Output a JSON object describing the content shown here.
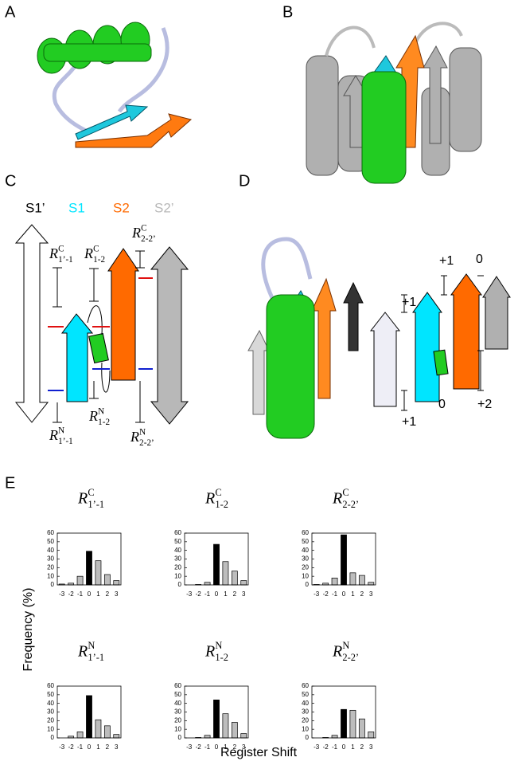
{
  "figure": {
    "panel_labels": [
      "A",
      "B",
      "C",
      "D",
      "E"
    ],
    "y_label": "Frequency (%)",
    "x_label": "Register Shift",
    "panel_c": {
      "strands": [
        {
          "name": "S1’",
          "color": "#000000"
        },
        {
          "name": "S1",
          "color": "#00e5ff"
        },
        {
          "name": "S2",
          "color": "#ff6a00"
        },
        {
          "name": "S2’",
          "color": "#b8b8b8"
        }
      ],
      "labels": [
        {
          "symbol": "R",
          "superscript": "C",
          "subscript": "1’-1"
        },
        {
          "symbol": "R",
          "superscript": "C",
          "subscript": "1-2"
        },
        {
          "symbol": "R",
          "superscript": "C",
          "subscript": "2-2’"
        },
        {
          "symbol": "R",
          "superscript": "N",
          "subscript": "1’-1"
        },
        {
          "symbol": "R",
          "superscript": "N",
          "subscript": "1-2"
        },
        {
          "symbol": "R",
          "superscript": "N",
          "subscript": "2-2’"
        }
      ]
    },
    "panel_d": {
      "labels": [
        "+1",
        "+1",
        "0",
        "+1",
        "0",
        "+2"
      ]
    }
  },
  "chart_data": [
    {
      "type": "bar",
      "title": {
        "symbol": "R",
        "superscript": "C",
        "subscript": "1’-1"
      },
      "categories": [
        "-3",
        "-2",
        "-1",
        "0",
        "1",
        "2",
        "3"
      ],
      "values": [
        1,
        2,
        10,
        39,
        28,
        12,
        5
      ],
      "colors": [
        "#bdbdbd",
        "#bdbdbd",
        "#bdbdbd",
        "#000000",
        "#bdbdbd",
        "#bdbdbd",
        "#bdbdbd"
      ],
      "ylim": [
        0,
        60
      ],
      "yticks": [
        0,
        10,
        20,
        30,
        40,
        50,
        60
      ]
    },
    {
      "type": "bar",
      "title": {
        "symbol": "R",
        "superscript": "C",
        "subscript": "1-2"
      },
      "categories": [
        "-3",
        "-2",
        "-1",
        "0",
        "1",
        "2",
        "3"
      ],
      "values": [
        0,
        0.5,
        3,
        47,
        27,
        16,
        5
      ],
      "colors": [
        "#bdbdbd",
        "#bdbdbd",
        "#bdbdbd",
        "#000000",
        "#bdbdbd",
        "#bdbdbd",
        "#bdbdbd"
      ],
      "ylim": [
        0,
        60
      ],
      "yticks": [
        0,
        10,
        20,
        30,
        40,
        50,
        60
      ]
    },
    {
      "type": "bar",
      "title": {
        "symbol": "R",
        "superscript": "C",
        "subscript": "2-2’"
      },
      "categories": [
        "-3",
        "-2",
        "-1",
        "0",
        "1",
        "2",
        "3"
      ],
      "values": [
        0.5,
        2,
        8,
        58,
        14,
        11,
        3
      ],
      "colors": [
        "#bdbdbd",
        "#bdbdbd",
        "#bdbdbd",
        "#000000",
        "#bdbdbd",
        "#bdbdbd",
        "#bdbdbd"
      ],
      "ylim": [
        0,
        60
      ],
      "yticks": [
        0,
        10,
        20,
        30,
        40,
        50,
        60
      ]
    },
    {
      "type": "bar",
      "title": {
        "symbol": "R",
        "superscript": "N",
        "subscript": "1’-1"
      },
      "categories": [
        "-3",
        "-2",
        "-1",
        "0",
        "1",
        "2",
        "3"
      ],
      "values": [
        0,
        2,
        7,
        49,
        21,
        14,
        4
      ],
      "colors": [
        "#bdbdbd",
        "#bdbdbd",
        "#bdbdbd",
        "#000000",
        "#bdbdbd",
        "#bdbdbd",
        "#bdbdbd"
      ],
      "ylim": [
        0,
        60
      ],
      "yticks": [
        0,
        10,
        20,
        30,
        40,
        50,
        60
      ]
    },
    {
      "type": "bar",
      "title": {
        "symbol": "R",
        "superscript": "N",
        "subscript": "1-2"
      },
      "categories": [
        "-3",
        "-2",
        "-1",
        "0",
        "1",
        "2",
        "3"
      ],
      "values": [
        0,
        0.5,
        3,
        44,
        28,
        18,
        5
      ],
      "colors": [
        "#bdbdbd",
        "#bdbdbd",
        "#bdbdbd",
        "#000000",
        "#bdbdbd",
        "#bdbdbd",
        "#bdbdbd"
      ],
      "ylim": [
        0,
        60
      ],
      "yticks": [
        0,
        10,
        20,
        30,
        40,
        50,
        60
      ]
    },
    {
      "type": "bar",
      "title": {
        "symbol": "R",
        "superscript": "N",
        "subscript": "2-2’"
      },
      "categories": [
        "-3",
        "-2",
        "-1",
        "0",
        "1",
        "2",
        "3"
      ],
      "values": [
        0,
        0.5,
        3,
        33,
        32,
        22,
        7
      ],
      "colors": [
        "#bdbdbd",
        "#bdbdbd",
        "#bdbdbd",
        "#000000",
        "#bdbdbd",
        "#bdbdbd",
        "#bdbdbd"
      ],
      "ylim": [
        0,
        60
      ],
      "yticks": [
        0,
        10,
        20,
        30,
        40,
        50,
        60
      ]
    }
  ]
}
